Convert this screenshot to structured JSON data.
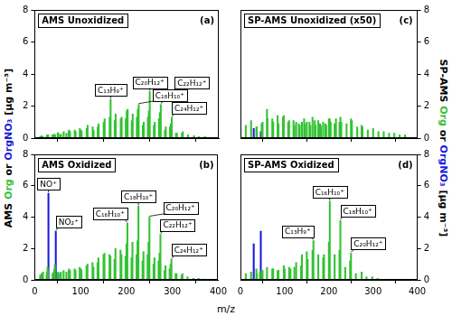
{
  "xlabel": "m/z",
  "ylabel": "AMS Org or OrgNO₃ [µg m⁻³]",
  "y2label": "SP-AMS Org or OrgNO₃ [µg m⁻³]",
  "chart_data": [
    {
      "type": "bar",
      "title": "AMS Unoxidized",
      "panel": "(a)",
      "xlim": [
        0,
        400
      ],
      "xticks": [
        0,
        100,
        200,
        300,
        400
      ],
      "ylim": [
        0,
        8
      ],
      "yticks": [
        0,
        2,
        4,
        6,
        8
      ],
      "grid": false,
      "tick_labels": "y",
      "series": [
        {
          "name": "Org",
          "color": "#33c233",
          "x": [
            12,
            15,
            18,
            26,
            27,
            28,
            29,
            39,
            41,
            43,
            44,
            50,
            51,
            55,
            57,
            63,
            69,
            74,
            75,
            77,
            87,
            89,
            98,
            101,
            102,
            113,
            115,
            126,
            128,
            137,
            139,
            150,
            151,
            152,
            163,
            165,
            174,
            176,
            187,
            189,
            198,
            200,
            202,
            211,
            213,
            222,
            224,
            226,
            235,
            237,
            246,
            248,
            250,
            259,
            261,
            270,
            272,
            274,
            283,
            285,
            294,
            296,
            298,
            307,
            309,
            320,
            322,
            333,
            346,
            357,
            370
          ],
          "values": [
            0.1,
            0.15,
            0.1,
            0.1,
            0.2,
            0.15,
            0.2,
            0.2,
            0.2,
            0.25,
            0.2,
            0.3,
            0.35,
            0.2,
            0.25,
            0.4,
            0.3,
            0.45,
            0.5,
            0.4,
            0.5,
            0.4,
            0.6,
            0.5,
            0.4,
            0.6,
            0.8,
            0.7,
            0.5,
            0.7,
            0.9,
            1.0,
            0.8,
            1.2,
            1.3,
            2.4,
            1.1,
            1.5,
            1.2,
            1.3,
            1.2,
            1.7,
            1.8,
            1.1,
            1.5,
            1.3,
            1.8,
            2.1,
            0.8,
            1.0,
            1.3,
            1.7,
            2.9,
            0.8,
            1.0,
            1.2,
            1.6,
            2.1,
            0.5,
            0.7,
            0.7,
            0.9,
            1.3,
            0.3,
            0.3,
            0.3,
            0.4,
            0.2,
            0.15,
            0.1,
            0.1
          ]
        },
        {
          "name": "OrgNO₃",
          "color": "#1a1adb",
          "x": [
            30,
            46
          ],
          "values": [
            0.05,
            0.03
          ]
        }
      ],
      "annotations": [
        {
          "text": "C₁₃H₉⁺",
          "x": 165
        },
        {
          "text": "C₁₈H₁₀⁺",
          "x": 226
        },
        {
          "text": "C₂₀H₁₂⁺",
          "x": 250
        },
        {
          "text": "C₂₂H₁₂⁺",
          "x": 274
        },
        {
          "text": "C₂₄H₁₂⁺",
          "x": 298
        }
      ]
    },
    {
      "type": "bar",
      "title": "AMS Oxidized",
      "panel": "(b)",
      "xlim": [
        0,
        400
      ],
      "xticks": [
        0,
        100,
        200,
        300,
        400
      ],
      "ylim": [
        0,
        8
      ],
      "yticks": [
        0,
        2,
        4,
        6,
        8
      ],
      "grid": false,
      "series": [
        {
          "name": "Org",
          "color": "#33c233",
          "x": [
            12,
            15,
            18,
            26,
            27,
            28,
            29,
            39,
            41,
            43,
            44,
            50,
            51,
            55,
            57,
            63,
            69,
            74,
            75,
            77,
            87,
            89,
            98,
            101,
            102,
            113,
            115,
            126,
            128,
            137,
            139,
            150,
            151,
            152,
            163,
            165,
            174,
            176,
            187,
            189,
            198,
            200,
            202,
            211,
            213,
            222,
            224,
            226,
            235,
            237,
            246,
            248,
            250,
            259,
            261,
            270,
            272,
            274,
            283,
            285,
            294,
            296,
            298,
            307,
            309,
            320,
            322,
            333,
            346,
            357,
            370
          ],
          "values": [
            0.3,
            0.4,
            0.5,
            0.3,
            0.5,
            0.8,
            0.6,
            0.4,
            0.5,
            0.7,
            1.0,
            0.4,
            0.5,
            0.4,
            0.5,
            0.6,
            0.5,
            0.6,
            0.7,
            0.6,
            0.7,
            0.6,
            0.8,
            0.7,
            0.6,
            0.9,
            1.0,
            1.1,
            0.8,
            1.1,
            1.4,
            1.6,
            1.0,
            1.7,
            1.6,
            1.5,
            1.3,
            2.0,
            1.9,
            1.6,
            1.5,
            2.3,
            3.6,
            1.4,
            2.4,
            1.6,
            2.5,
            4.7,
            1.2,
            1.8,
            1.6,
            2.4,
            4.0,
            1.0,
            1.4,
            1.2,
            1.7,
            2.9,
            0.6,
            0.9,
            0.7,
            1.0,
            1.3,
            0.4,
            0.4,
            0.3,
            0.4,
            0.2,
            0.1,
            0.1,
            0.05
          ]
        },
        {
          "name": "OrgNO₃",
          "color": "#1a1adb",
          "x": [
            30,
            46
          ],
          "values": [
            5.5,
            3.1
          ]
        }
      ],
      "annotations": [
        {
          "text": "NO⁺",
          "x": 30
        },
        {
          "text": "NO₂⁺",
          "x": 46
        },
        {
          "text": "C₁₆H₁₀⁺",
          "x": 202
        },
        {
          "text": "C₁₈H₁₀⁺",
          "x": 226
        },
        {
          "text": "C₂₀H₁₂⁺",
          "x": 250
        },
        {
          "text": "C₂₂H₁₂⁺",
          "x": 274
        },
        {
          "text": "C₂₄H₁₂⁺",
          "x": 298
        }
      ]
    },
    {
      "type": "bar",
      "title": "SP-AMS Unoxidized (x50)",
      "panel": "(c)",
      "xlim": [
        0,
        400
      ],
      "xticks": [
        0,
        100,
        200,
        300,
        400
      ],
      "y2lim": [
        0,
        8
      ],
      "y2ticks": [
        0,
        2,
        4,
        6,
        8
      ],
      "grid": false,
      "tick_labels": "y",
      "series": [
        {
          "name": "Org",
          "color": "#33c233",
          "axis": "y2",
          "x": [
            12,
            24,
            36,
            37,
            48,
            50,
            60,
            61,
            72,
            74,
            84,
            86,
            96,
            98,
            108,
            110,
            120,
            122,
            126,
            132,
            134,
            139,
            144,
            146,
            150,
            156,
            158,
            163,
            168,
            170,
            176,
            180,
            182,
            187,
            192,
            194,
            200,
            202,
            204,
            213,
            216,
            224,
            226,
            228,
            240,
            250,
            252,
            264,
            274,
            276,
            288,
            300,
            312,
            324,
            336,
            348,
            360,
            372
          ],
          "values": [
            0.8,
            1.1,
            0.7,
            0.7,
            0.9,
            1.0,
            1.8,
            1.2,
            1.2,
            1.0,
            1.4,
            0.9,
            1.3,
            1.4,
            1.0,
            1.1,
            1.1,
            0.8,
            1.0,
            0.9,
            0.8,
            1.0,
            1.2,
            0.9,
            1.0,
            1.0,
            0.8,
            1.3,
            1.1,
            0.8,
            1.1,
            0.9,
            0.8,
            1.0,
            0.9,
            0.8,
            1.2,
            1.2,
            1.0,
            0.9,
            1.2,
            1.0,
            1.3,
            1.0,
            0.9,
            1.2,
            1.1,
            0.7,
            0.8,
            0.7,
            0.5,
            0.6,
            0.4,
            0.4,
            0.3,
            0.3,
            0.2,
            0.2
          ]
        },
        {
          "name": "OrgNO₃",
          "color": "#1a1adb",
          "axis": "y2",
          "x": [
            30,
            46
          ],
          "values": [
            0.6,
            0.4
          ]
        }
      ]
    },
    {
      "type": "bar",
      "title": "SP-AMS Oxidized",
      "panel": "(d)",
      "xlim": [
        0,
        400
      ],
      "xticks": [
        0,
        100,
        200,
        300,
        400
      ],
      "y2lim": [
        0,
        8
      ],
      "y2ticks": [
        0,
        2,
        4,
        6,
        8
      ],
      "grid": false,
      "series": [
        {
          "name": "Org",
          "color": "#33c233",
          "axis": "y2",
          "x": [
            12,
            24,
            36,
            37,
            44,
            48,
            50,
            60,
            72,
            74,
            84,
            86,
            98,
            100,
            110,
            113,
            122,
            126,
            137,
            139,
            150,
            152,
            163,
            165,
            176,
            187,
            189,
            200,
            202,
            213,
            224,
            226,
            237,
            248,
            250,
            261,
            274,
            285,
            298,
            310
          ],
          "values": [
            0.4,
            0.5,
            0.7,
            0.4,
            0.5,
            0.6,
            0.6,
            0.8,
            0.7,
            0.7,
            0.6,
            0.6,
            0.9,
            0.7,
            0.8,
            0.7,
            0.8,
            1.1,
            0.9,
            1.6,
            1.8,
            1.3,
            1.9,
            2.5,
            1.6,
            1.4,
            1.6,
            2.4,
            5.0,
            1.6,
            1.9,
            3.8,
            0.8,
            1.2,
            1.7,
            0.4,
            0.5,
            0.2,
            0.2,
            0.1
          ]
        },
        {
          "name": "OrgNO₃",
          "color": "#1a1adb",
          "axis": "y2",
          "x": [
            30,
            46
          ],
          "values": [
            2.3,
            3.1
          ]
        }
      ],
      "annotations": [
        {
          "text": "C₁₃H₉⁺",
          "x": 165
        },
        {
          "text": "C₁₆H₁₀⁺",
          "x": 202
        },
        {
          "text": "C₁₈H₁₀⁺",
          "x": 226
        },
        {
          "text": "C₂₀H₁₂⁺",
          "x": 250
        }
      ]
    }
  ]
}
